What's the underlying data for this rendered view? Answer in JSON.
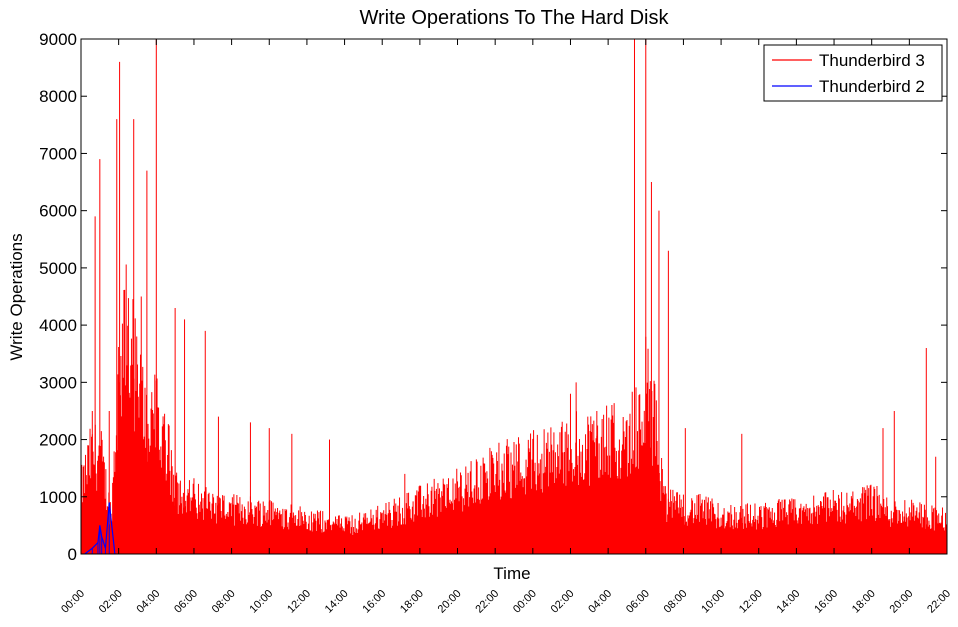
{
  "chart_data": {
    "type": "line",
    "title": "Write Operations To The Hard Disk",
    "xlabel": "Time",
    "ylabel": "Write Operations",
    "ylim": [
      0,
      9000
    ],
    "yticks": [
      0,
      1000,
      2000,
      3000,
      4000,
      5000,
      6000,
      7000,
      8000,
      9000
    ],
    "xlim": [
      0,
      46
    ],
    "xticks": [
      {
        "x": 0,
        "label": "00:00"
      },
      {
        "x": 2,
        "label": "02:00"
      },
      {
        "x": 4,
        "label": "04:00"
      },
      {
        "x": 6,
        "label": "06:00"
      },
      {
        "x": 8,
        "label": "08:00"
      },
      {
        "x": 10,
        "label": "10:00"
      },
      {
        "x": 12,
        "label": "12:00"
      },
      {
        "x": 14,
        "label": "14:00"
      },
      {
        "x": 16,
        "label": "16:00"
      },
      {
        "x": 18,
        "label": "18:00"
      },
      {
        "x": 20,
        "label": "20:00"
      },
      {
        "x": 22,
        "label": "22:00"
      },
      {
        "x": 24,
        "label": "00:00"
      },
      {
        "x": 26,
        "label": "02:00"
      },
      {
        "x": 28,
        "label": "04:00"
      },
      {
        "x": 30,
        "label": "06:00"
      },
      {
        "x": 32,
        "label": "08:00"
      },
      {
        "x": 34,
        "label": "10:00"
      },
      {
        "x": 36,
        "label": "12:00"
      },
      {
        "x": 38,
        "label": "14:00"
      },
      {
        "x": 40,
        "label": "16:00"
      },
      {
        "x": 42,
        "label": "18:00"
      },
      {
        "x": 44,
        "label": "20:00"
      },
      {
        "x": 46,
        "label": "22:00"
      }
    ],
    "legend_position": "top-right",
    "grid": false,
    "series": [
      {
        "name": "Thunderbird 3",
        "color": "#ff0000",
        "x": [
          0,
          0.5,
          1,
          1.6,
          2,
          2.5,
          3,
          3.5,
          4,
          4.5,
          5,
          6,
          7,
          8,
          9,
          10,
          11,
          12,
          13,
          14,
          15,
          16,
          17,
          18,
          19,
          20,
          21,
          22,
          23,
          24,
          25,
          26,
          27,
          28,
          29,
          29.5,
          30,
          30.5,
          31,
          32,
          33,
          34,
          35,
          36,
          37,
          38,
          39,
          40,
          41,
          42,
          43,
          44,
          45,
          46
        ],
        "y": [
          1000,
          1500,
          1600,
          600,
          2700,
          3600,
          2600,
          2100,
          2100,
          1800,
          1000,
          900,
          750,
          700,
          700,
          650,
          600,
          550,
          500,
          450,
          500,
          600,
          700,
          800,
          900,
          1000,
          1150,
          1300,
          1400,
          1450,
          1550,
          1650,
          1700,
          1750,
          1800,
          2000,
          2600,
          2000,
          800,
          700,
          700,
          600,
          600,
          600,
          650,
          650,
          700,
          750,
          750,
          850,
          650,
          650,
          600,
          550
        ],
        "spikes": [
          {
            "x": 0.6,
            "y": 2500
          },
          {
            "x": 0.75,
            "y": 5900
          },
          {
            "x": 1.0,
            "y": 6900
          },
          {
            "x": 1.5,
            "y": 2500
          },
          {
            "x": 1.9,
            "y": 7600
          },
          {
            "x": 2.05,
            "y": 8600
          },
          {
            "x": 2.8,
            "y": 7600
          },
          {
            "x": 3.2,
            "y": 4500
          },
          {
            "x": 3.5,
            "y": 6700
          },
          {
            "x": 4.0,
            "y": 9000
          },
          {
            "x": 5.0,
            "y": 4300
          },
          {
            "x": 5.5,
            "y": 4100
          },
          {
            "x": 6.6,
            "y": 3900
          },
          {
            "x": 7.3,
            "y": 2400
          },
          {
            "x": 9.0,
            "y": 2300
          },
          {
            "x": 10.0,
            "y": 2200
          },
          {
            "x": 11.2,
            "y": 2100
          },
          {
            "x": 13.2,
            "y": 2000
          },
          {
            "x": 17.2,
            "y": 1400
          },
          {
            "x": 26.0,
            "y": 2800
          },
          {
            "x": 26.3,
            "y": 3000
          },
          {
            "x": 27.4,
            "y": 2500
          },
          {
            "x": 29.4,
            "y": 9000
          },
          {
            "x": 30.0,
            "y": 9000
          },
          {
            "x": 30.3,
            "y": 6500
          },
          {
            "x": 30.7,
            "y": 6000
          },
          {
            "x": 31.2,
            "y": 5300
          },
          {
            "x": 32.1,
            "y": 2200
          },
          {
            "x": 35.1,
            "y": 2100
          },
          {
            "x": 42.6,
            "y": 2200
          },
          {
            "x": 43.2,
            "y": 2500
          },
          {
            "x": 44.9,
            "y": 3600
          },
          {
            "x": 45.4,
            "y": 1700
          }
        ]
      },
      {
        "name": "Thunderbird 2",
        "color": "#0000ff",
        "x": [
          0.2,
          0.6,
          0.9,
          1.0,
          1.1,
          1.3,
          1.5,
          1.8
        ],
        "y": [
          0,
          100,
          200,
          500,
          300,
          100,
          900,
          0
        ]
      }
    ]
  }
}
